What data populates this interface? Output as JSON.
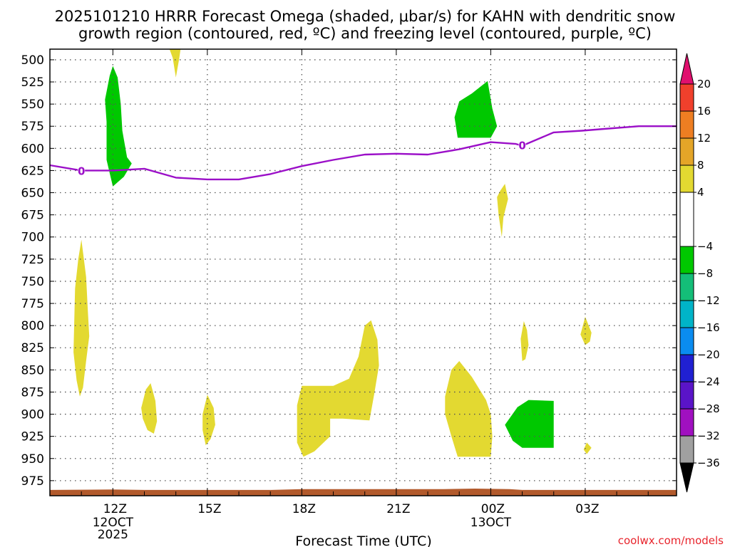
{
  "chart_data": {
    "type": "heatmap",
    "title": {
      "line1": "2025101210 HRRR Forecast Omega (shaded, μbar/s) for KAHN with dendritic snow",
      "line2": "growth region (contoured, red, ºC) and freezing level (contoured, purple, ºC)"
    },
    "xlabel": "Forecast Time (UTC)",
    "credit": "coolwx.com/models",
    "x_range_hours": [
      10,
      29.9
    ],
    "y_range_hpa": [
      488,
      992
    ],
    "x_ticks": [
      {
        "hour": 12,
        "label": "12Z",
        "sub1": "12OCT",
        "sub2": "2025"
      },
      {
        "hour": 15,
        "label": "15Z",
        "sub1": "",
        "sub2": ""
      },
      {
        "hour": 18,
        "label": "18Z",
        "sub1": "",
        "sub2": ""
      },
      {
        "hour": 21,
        "label": "21Z",
        "sub1": "",
        "sub2": ""
      },
      {
        "hour": 24,
        "label": "00Z",
        "sub1": "13OCT",
        "sub2": ""
      },
      {
        "hour": 27,
        "label": "03Z",
        "sub1": "",
        "sub2": ""
      }
    ],
    "y_ticks": [
      {
        "value": 500,
        "label": "500"
      },
      {
        "value": 525,
        "label": "525"
      },
      {
        "value": 550,
        "label": "550"
      },
      {
        "value": 575,
        "label": "575"
      },
      {
        "value": 600,
        "label": "600"
      },
      {
        "value": 625,
        "label": "625"
      },
      {
        "value": 650,
        "label": "650"
      },
      {
        "value": 675,
        "label": "675"
      },
      {
        "value": 700,
        "label": "700"
      },
      {
        "value": 725,
        "label": "725"
      },
      {
        "value": 750,
        "label": "750"
      },
      {
        "value": 775,
        "label": "775"
      },
      {
        "value": 800,
        "label": "800"
      },
      {
        "value": 825,
        "label": "825"
      },
      {
        "value": 850,
        "label": "850"
      },
      {
        "value": 875,
        "label": "875"
      },
      {
        "value": 900,
        "label": "900"
      },
      {
        "value": 925,
        "label": "925"
      },
      {
        "value": 950,
        "label": "950"
      },
      {
        "value": 975,
        "label": "975"
      }
    ],
    "colorbar": {
      "labels": [
        "20",
        "16",
        "12",
        "8",
        "4",
        "−4",
        "−8",
        "−12",
        "−16",
        "−20",
        "−24",
        "−28",
        "−32",
        "−36"
      ],
      "bands": [
        {
          "from": 20,
          "to": 24,
          "color": "#e0106e"
        },
        {
          "from": 16,
          "to": 20,
          "color": "#f0402c"
        },
        {
          "from": 12,
          "to": 16,
          "color": "#ee7e22"
        },
        {
          "from": 8,
          "to": 12,
          "color": "#e4a528"
        },
        {
          "from": 4,
          "to": 8,
          "color": "#e3d931"
        },
        {
          "from": -4,
          "to": 4,
          "color": "#ffffff"
        },
        {
          "from": -8,
          "to": -4,
          "color": "#00c800"
        },
        {
          "from": -12,
          "to": -8,
          "color": "#14be78"
        },
        {
          "from": -16,
          "to": -12,
          "color": "#00b4c8"
        },
        {
          "from": -20,
          "to": -16,
          "color": "#0a8cf0"
        },
        {
          "from": -24,
          "to": -20,
          "color": "#2020d2"
        },
        {
          "from": -28,
          "to": -24,
          "color": "#5a14c8"
        },
        {
          "from": -32,
          "to": -28,
          "color": "#a010c0"
        },
        {
          "from": -36,
          "to": -32,
          "color": "#a0a0a0"
        }
      ],
      "top_cap_color": "#e0106e",
      "bottom_cap_color": "#000000"
    },
    "freezing_level": {
      "color": "#9b0fc8",
      "contour_label": "0",
      "label_points": [
        {
          "hour": 11.0,
          "hpa": 625
        },
        {
          "hour": 25.0,
          "hpa": 596
        }
      ],
      "points": [
        [
          10.0,
          619
        ],
        [
          11.0,
          625
        ],
        [
          12.0,
          625
        ],
        [
          13.0,
          623
        ],
        [
          14.0,
          633
        ],
        [
          15.0,
          635
        ],
        [
          16.0,
          635
        ],
        [
          17.0,
          629
        ],
        [
          18.0,
          620
        ],
        [
          19.0,
          613
        ],
        [
          20.0,
          607
        ],
        [
          21.0,
          606
        ],
        [
          22.0,
          607
        ],
        [
          23.0,
          601
        ],
        [
          24.0,
          593
        ],
        [
          24.8,
          595
        ],
        [
          25.0,
          597
        ],
        [
          26.0,
          582
        ],
        [
          26.9,
          580
        ],
        [
          27.6,
          578
        ],
        [
          28.7,
          575
        ],
        [
          29.9,
          575
        ]
      ]
    },
    "omega_regions": [
      {
        "band": "-8 to -4",
        "color": "#00c800",
        "points": [
          [
            11.8,
            613
          ],
          [
            11.8,
            570
          ],
          [
            11.75,
            545
          ],
          [
            11.9,
            518
          ],
          [
            12.0,
            507
          ],
          [
            12.15,
            520
          ],
          [
            12.25,
            550
          ],
          [
            12.3,
            580
          ],
          [
            12.45,
            610
          ],
          [
            12.6,
            617
          ],
          [
            12.35,
            632
          ],
          [
            12.0,
            643
          ],
          [
            11.9,
            628
          ]
        ]
      },
      {
        "band": "4 to 8",
        "color": "#e3d931",
        "points": [
          [
            13.8,
            488
          ],
          [
            14.15,
            488
          ],
          [
            14.1,
            500
          ],
          [
            14.0,
            520
          ],
          [
            13.9,
            498
          ]
        ]
      },
      {
        "band": "-8 to -4",
        "color": "#00c800",
        "points": [
          [
            22.85,
            565
          ],
          [
            23.0,
            547
          ],
          [
            23.4,
            538
          ],
          [
            23.9,
            524
          ],
          [
            24.05,
            555
          ],
          [
            24.2,
            575
          ],
          [
            24.0,
            588
          ],
          [
            22.95,
            588
          ]
        ]
      },
      {
        "band": "4 to 8",
        "color": "#e3d931",
        "points": [
          [
            24.3,
            648
          ],
          [
            24.45,
            640
          ],
          [
            24.55,
            657
          ],
          [
            24.4,
            678
          ],
          [
            24.35,
            700
          ],
          [
            24.25,
            675
          ],
          [
            24.2,
            655
          ]
        ]
      },
      {
        "band": "4 to 8",
        "color": "#e3d931",
        "points": [
          [
            10.8,
            758
          ],
          [
            10.9,
            725
          ],
          [
            11.0,
            703
          ],
          [
            11.15,
            745
          ],
          [
            11.2,
            780
          ],
          [
            11.25,
            812
          ],
          [
            11.15,
            840
          ],
          [
            11.05,
            870
          ],
          [
            10.95,
            880
          ],
          [
            10.85,
            862
          ],
          [
            10.75,
            830
          ]
        ]
      },
      {
        "band": "4 to 8",
        "color": "#e3d931",
        "points": [
          [
            12.9,
            893
          ],
          [
            13.05,
            872
          ],
          [
            13.2,
            865
          ],
          [
            13.35,
            885
          ],
          [
            13.4,
            908
          ],
          [
            13.3,
            922
          ],
          [
            13.1,
            918
          ],
          [
            12.95,
            905
          ]
        ]
      },
      {
        "band": "4 to 8",
        "color": "#e3d931",
        "points": [
          [
            14.85,
            900
          ],
          [
            15.0,
            878
          ],
          [
            15.2,
            893
          ],
          [
            15.25,
            912
          ],
          [
            15.1,
            928
          ],
          [
            14.95,
            935
          ],
          [
            14.85,
            918
          ]
        ]
      },
      {
        "band": "4 to 8",
        "color": "#e3d931",
        "points": [
          [
            17.85,
            890
          ],
          [
            18.0,
            868
          ],
          [
            19.0,
            868
          ],
          [
            19.5,
            860
          ],
          [
            19.8,
            835
          ],
          [
            20.0,
            800
          ],
          [
            20.2,
            794
          ],
          [
            20.4,
            816
          ],
          [
            20.45,
            845
          ],
          [
            20.3,
            877
          ],
          [
            20.15,
            907
          ],
          [
            19.3,
            905
          ],
          [
            18.9,
            905
          ],
          [
            18.9,
            925
          ],
          [
            18.4,
            942
          ],
          [
            18.05,
            948
          ],
          [
            17.85,
            932
          ]
        ]
      },
      {
        "band": "4 to 8",
        "color": "#e3d931",
        "points": [
          [
            22.55,
            880
          ],
          [
            22.75,
            850
          ],
          [
            23.0,
            840
          ],
          [
            23.4,
            858
          ],
          [
            23.85,
            884
          ],
          [
            24.0,
            900
          ],
          [
            24.05,
            925
          ],
          [
            24.0,
            948
          ],
          [
            22.95,
            948
          ],
          [
            22.75,
            925
          ],
          [
            22.55,
            900
          ]
        ]
      },
      {
        "band": "4 to 8",
        "color": "#e3d931",
        "points": [
          [
            24.95,
            815
          ],
          [
            25.05,
            795
          ],
          [
            25.15,
            805
          ],
          [
            25.2,
            822
          ],
          [
            25.1,
            838
          ],
          [
            25.0,
            840
          ]
        ]
      },
      {
        "band": "4 to 8",
        "color": "#e3d931",
        "points": [
          [
            26.85,
            810
          ],
          [
            27.0,
            790
          ],
          [
            27.2,
            808
          ],
          [
            27.15,
            818
          ],
          [
            27.0,
            822
          ]
        ]
      },
      {
        "band": "4 to 8",
        "color": "#e3d931",
        "points": [
          [
            26.95,
            940
          ],
          [
            27.05,
            932
          ],
          [
            27.2,
            938
          ],
          [
            27.05,
            945
          ]
        ]
      },
      {
        "band": "-8 to -4",
        "color": "#00c800",
        "points": [
          [
            24.45,
            912
          ],
          [
            24.85,
            892
          ],
          [
            25.2,
            884
          ],
          [
            26.0,
            885
          ],
          [
            26.0,
            938
          ],
          [
            25.0,
            938
          ],
          [
            24.7,
            930
          ]
        ]
      }
    ],
    "terrain": {
      "color": "#b25a2c",
      "from_hpa": 985,
      "points": [
        [
          10.0,
          985.5
        ],
        [
          12.0,
          985
        ],
        [
          13.0,
          985.5
        ],
        [
          17.0,
          985.5
        ],
        [
          18.0,
          984.5
        ],
        [
          22.5,
          984.5
        ],
        [
          23.5,
          984
        ],
        [
          24.6,
          984.5
        ],
        [
          25.0,
          985.5
        ],
        [
          29.9,
          985.5
        ]
      ]
    }
  }
}
